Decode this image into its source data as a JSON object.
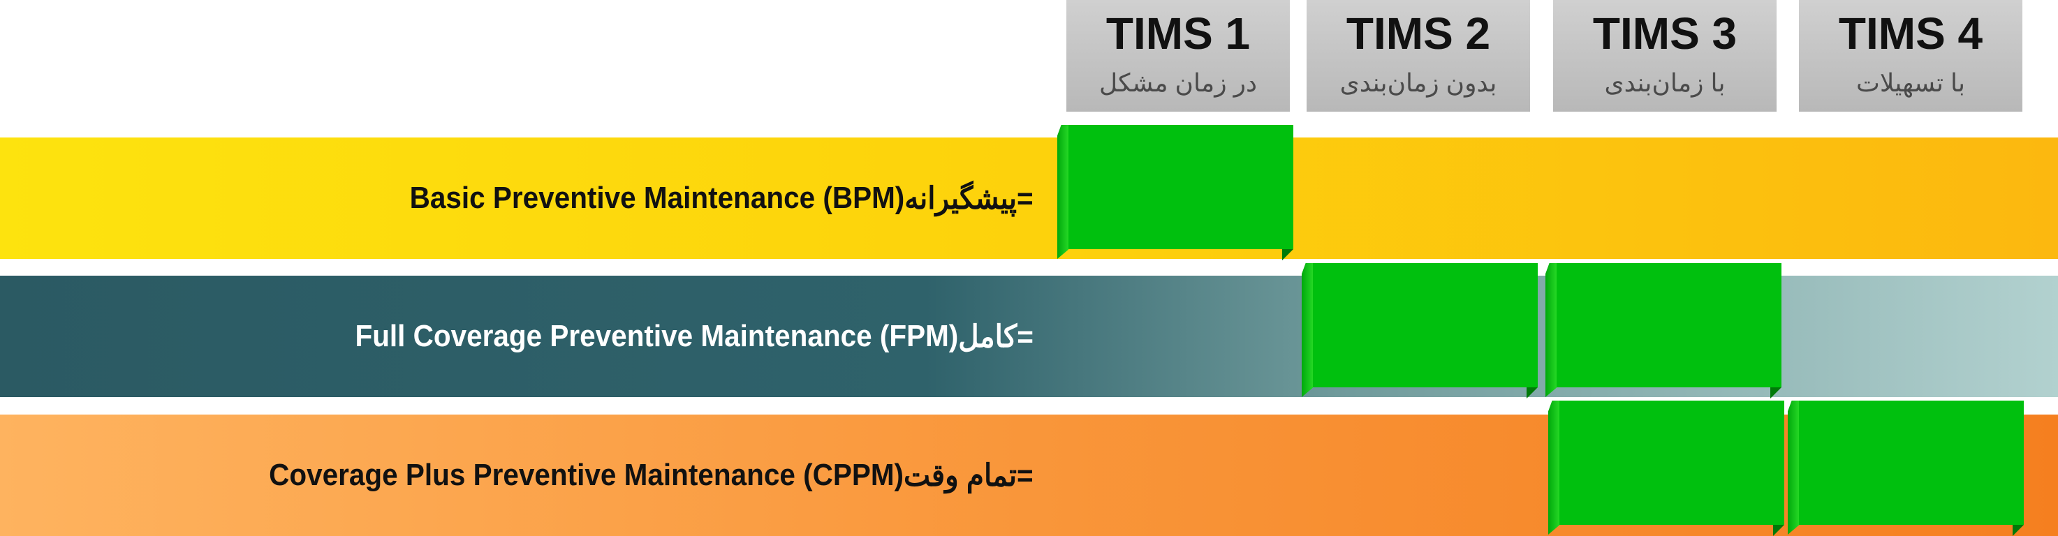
{
  "columns": [
    {
      "title": "TIMS 1",
      "subtitle": "در زمان مشکل"
    },
    {
      "title": "TIMS 2",
      "subtitle": "بدون زمان‌بندی"
    },
    {
      "title": "TIMS 3",
      "subtitle": "با زمان‌بندی"
    },
    {
      "title": "TIMS 4",
      "subtitle": "با تسهیلات"
    }
  ],
  "rows": [
    {
      "english": "Basic Preventive Maintenance (BPM)",
      "persian": "=پیشگیرانه",
      "covered": [
        "TIMS 1"
      ]
    },
    {
      "english": "Full Coverage Preventive Maintenance (FPM)",
      "persian": "=کامل",
      "covered": [
        "TIMS 2",
        "TIMS 3"
      ]
    },
    {
      "english": "Coverage Plus Preventive Maintenance (CPPM)",
      "persian": "=تمام وقت",
      "covered": [
        "TIMS 3",
        "TIMS 4"
      ]
    }
  ],
  "colors": {
    "bpm": "#fdd20c",
    "fpm": "#2f626b",
    "cppm": "#f9963a",
    "covered": "#00c00e",
    "header": "#c4c4c4"
  }
}
